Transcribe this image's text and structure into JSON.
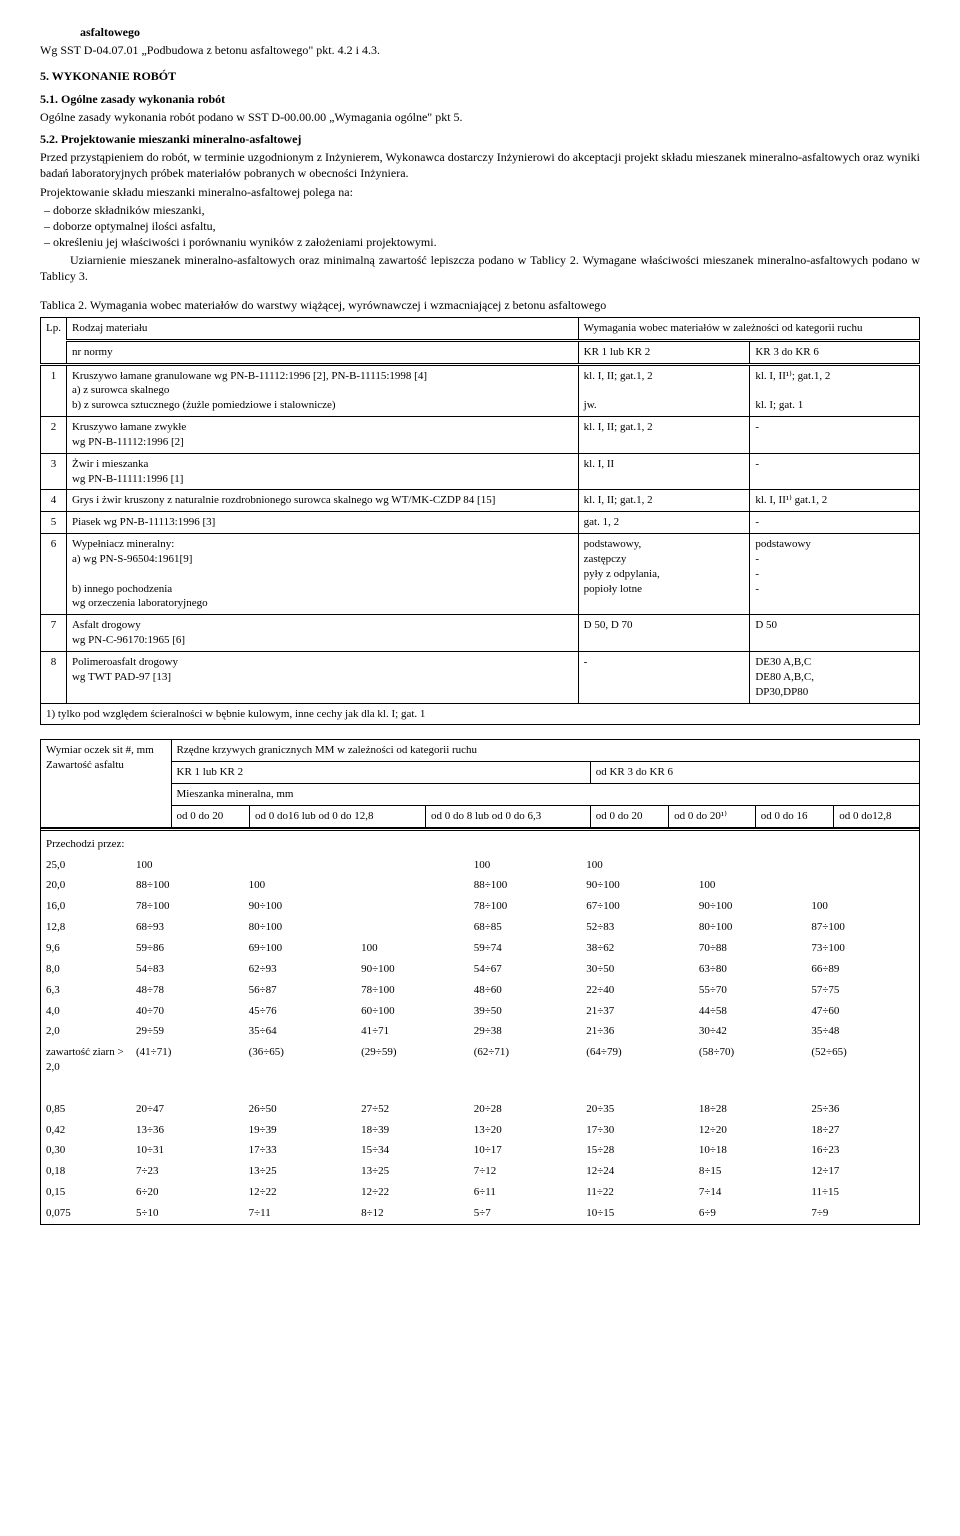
{
  "titleLine": "asfaltowego",
  "wgLine": "Wg SST D-04.07.01 „Podbudowa z betonu asfaltowego\" pkt. 4.2 i 4.3.",
  "sec5": "5. WYKONANIE ROBÓT",
  "sec51h": "5.1. Ogólne zasady wykonania robót",
  "sec51b": "Ogólne zasady wykonania robót podano w SST D-00.00.00 „Wymagania ogólne\" pkt 5.",
  "sec52h": "5.2. Projektowanie mieszanki mineralno-asfaltowej",
  "sec52p1": "Przed przystąpieniem do robót, w terminie uzgodnionym z Inżynierem, Wykonawca dostarczy Inżynierowi do akceptacji projekt składu mieszanek mineralno-asfaltowych oraz wyniki badań laboratoryjnych próbek materiałów pobranych w obecności Inżyniera.",
  "sec52p2": "Projektowanie składu mieszanki mineralno-asfaltowej polega na:",
  "bullets": [
    "doborze składników mieszanki,",
    "doborze optymalnej ilości asfaltu,",
    "określeniu jej właściwości i porównaniu wyników z założeniami projektowymi."
  ],
  "sec52p3": "Uziarnienie mieszanek mineralno-asfaltowych oraz minimalną zawartość lepiszcza podano w Tablicy 2. Wymagane właściwości mieszanek mineralno-asfaltowych podano w Tablicy 3.",
  "tab2cap": "Tablica 2. Wymagania wobec materiałów do warstwy wiążącej, wyrównawczej    i wzmacniającej z betonu asfaltowego",
  "t2": {
    "h_lp": "Lp.",
    "h_rodzaj": "Rodzaj materiału",
    "h_nr": "nr normy",
    "h_wym": "Wymagania wobec materiałów w zależności od kategorii ruchu",
    "h_kr12": "KR 1 lub KR 2",
    "h_kr36": "KR 3 do KR 6",
    "rows": [
      {
        "n": "1",
        "mat": "Kruszywo łamane granulowane wg PN-B-11112:1996 [2], PN-B-11115:1998 [4]\na) z surowca skalnego\nb) z surowca sztucznego (żużle pomiedziowe i stalownicze)",
        "c1": "kl. I, II; gat.1, 2\n\njw.",
        "c2": "kl. I, II¹⁾; gat.1, 2\n\nkl. I; gat. 1"
      },
      {
        "n": "2",
        "mat": "Kruszywo łamane zwykłe\nwg PN-B-11112:1996 [2]",
        "c1": "kl. I, II; gat.1, 2",
        "c2": "-"
      },
      {
        "n": "3",
        "mat": "Żwir i mieszanka\nwg PN-B-11111:1996 [1]",
        "c1": "kl. I, II",
        "c2": "-"
      },
      {
        "n": "4",
        "mat": "Grys i żwir kruszony z naturalnie rozdrobnionego surowca skalnego wg WT/MK-CZDP 84 [15]",
        "c1": "kl. I, II; gat.1, 2",
        "c2": "kl. I, II¹⁾ gat.1, 2"
      },
      {
        "n": "5",
        "mat": "Piasek wg PN-B-11113:1996 [3]",
        "c1": "gat. 1, 2",
        "c2": "-"
      },
      {
        "n": "6",
        "mat": "Wypełniacz mineralny:\na) wg PN-S-96504:1961[9]\n\nb) innego pochodzenia\n    wg orzeczenia laboratoryjnego",
        "c1": "podstawowy,\nzastępczy\npyły z odpylania,\npopioły lotne",
        "c2": "podstawowy\n-\n-\n-"
      },
      {
        "n": "7",
        "mat": "Asfalt drogowy\nwg PN-C-96170:1965 [6]",
        "c1": "D 50, D 70",
        "c2": "D 50"
      },
      {
        "n": "8",
        "mat": "Polimeroasfalt drogowy\nwg TWT PAD-97 [13]",
        "c1": "-",
        "c2": "DE30 A,B,C\nDE80 A,B,C,\nDP30,DP80"
      }
    ],
    "foot": "1) tylko pod względem ścieralności w bębnie kulowym, inne cechy jak dla kl. I; gat. 1"
  },
  "t3": {
    "hLeft1": "Wymiar oczek sit #, mm",
    "hLeft2": "Zawartość asfaltu",
    "hTop": "Rzędne krzywych granicznych MM w zależności od kategorii ruchu",
    "hKR12": "KR 1 lub KR 2",
    "hKR36": "od KR 3 do KR 6",
    "hMM": "Mieszanka mineralna, mm",
    "cols": [
      "od 0 do 20",
      "od 0 do16 lub od 0 do 12,8",
      "od 0 do 8 lub od 0 do 6,3",
      "od 0 do 20",
      "od 0 do 20¹⁾",
      "od 0 do 16",
      "od 0 do12,8"
    ],
    "passLbl": "Przechodzi przez:",
    "rows": [
      [
        "25,0",
        "100",
        "",
        "",
        "100",
        "100",
        "",
        ""
      ],
      [
        "20,0",
        "88÷100",
        "100",
        "",
        "88÷100",
        "90÷100",
        "100",
        ""
      ],
      [
        "16,0",
        "78÷100",
        "90÷100",
        "",
        "78÷100",
        "67÷100",
        "90÷100",
        "100"
      ],
      [
        "12,8",
        "68÷93",
        "80÷100",
        "",
        "68÷85",
        "52÷83",
        "80÷100",
        "87÷100"
      ],
      [
        "9,6",
        "59÷86",
        "69÷100",
        "100",
        "59÷74",
        "38÷62",
        "70÷88",
        "73÷100"
      ],
      [
        "8,0",
        "54÷83",
        "62÷93",
        "90÷100",
        "54÷67",
        "30÷50",
        "63÷80",
        "66÷89"
      ],
      [
        "6,3",
        "48÷78",
        "56÷87",
        "78÷100",
        "48÷60",
        "22÷40",
        "55÷70",
        "57÷75"
      ],
      [
        "4,0",
        "40÷70",
        "45÷76",
        "60÷100",
        "39÷50",
        "21÷37",
        "44÷58",
        "47÷60"
      ],
      [
        "2,0",
        "29÷59",
        "35÷64",
        "41÷71",
        "29÷38",
        "21÷36",
        "30÷42",
        "35÷48"
      ]
    ],
    "grainLbl": "zawartość ziarn > 2,0",
    "grainRow": [
      "(41÷71)",
      "(36÷65)",
      "(29÷59)",
      "(62÷71)",
      "(64÷79)",
      "(58÷70)",
      "(52÷65)"
    ],
    "rows2": [
      [
        "0,85",
        "20÷47",
        "26÷50",
        "27÷52",
        "20÷28",
        "20÷35",
        "18÷28",
        "25÷36"
      ],
      [
        "0,42",
        "13÷36",
        "19÷39",
        "18÷39",
        "13÷20",
        "17÷30",
        "12÷20",
        "18÷27"
      ],
      [
        "0,30",
        "10÷31",
        "17÷33",
        "15÷34",
        "10÷17",
        "15÷28",
        "10÷18",
        "16÷23"
      ],
      [
        "0,18",
        "7÷23",
        "13÷25",
        "13÷25",
        "7÷12",
        "12÷24",
        "8÷15",
        "12÷17"
      ],
      [
        "0,15",
        "6÷20",
        "12÷22",
        "12÷22",
        "6÷11",
        "11÷22",
        "7÷14",
        "11÷15"
      ],
      [
        "0,075",
        "5÷10",
        "7÷11",
        "8÷12",
        "5÷7",
        "10÷15",
        "6÷9",
        "7÷9"
      ]
    ]
  }
}
